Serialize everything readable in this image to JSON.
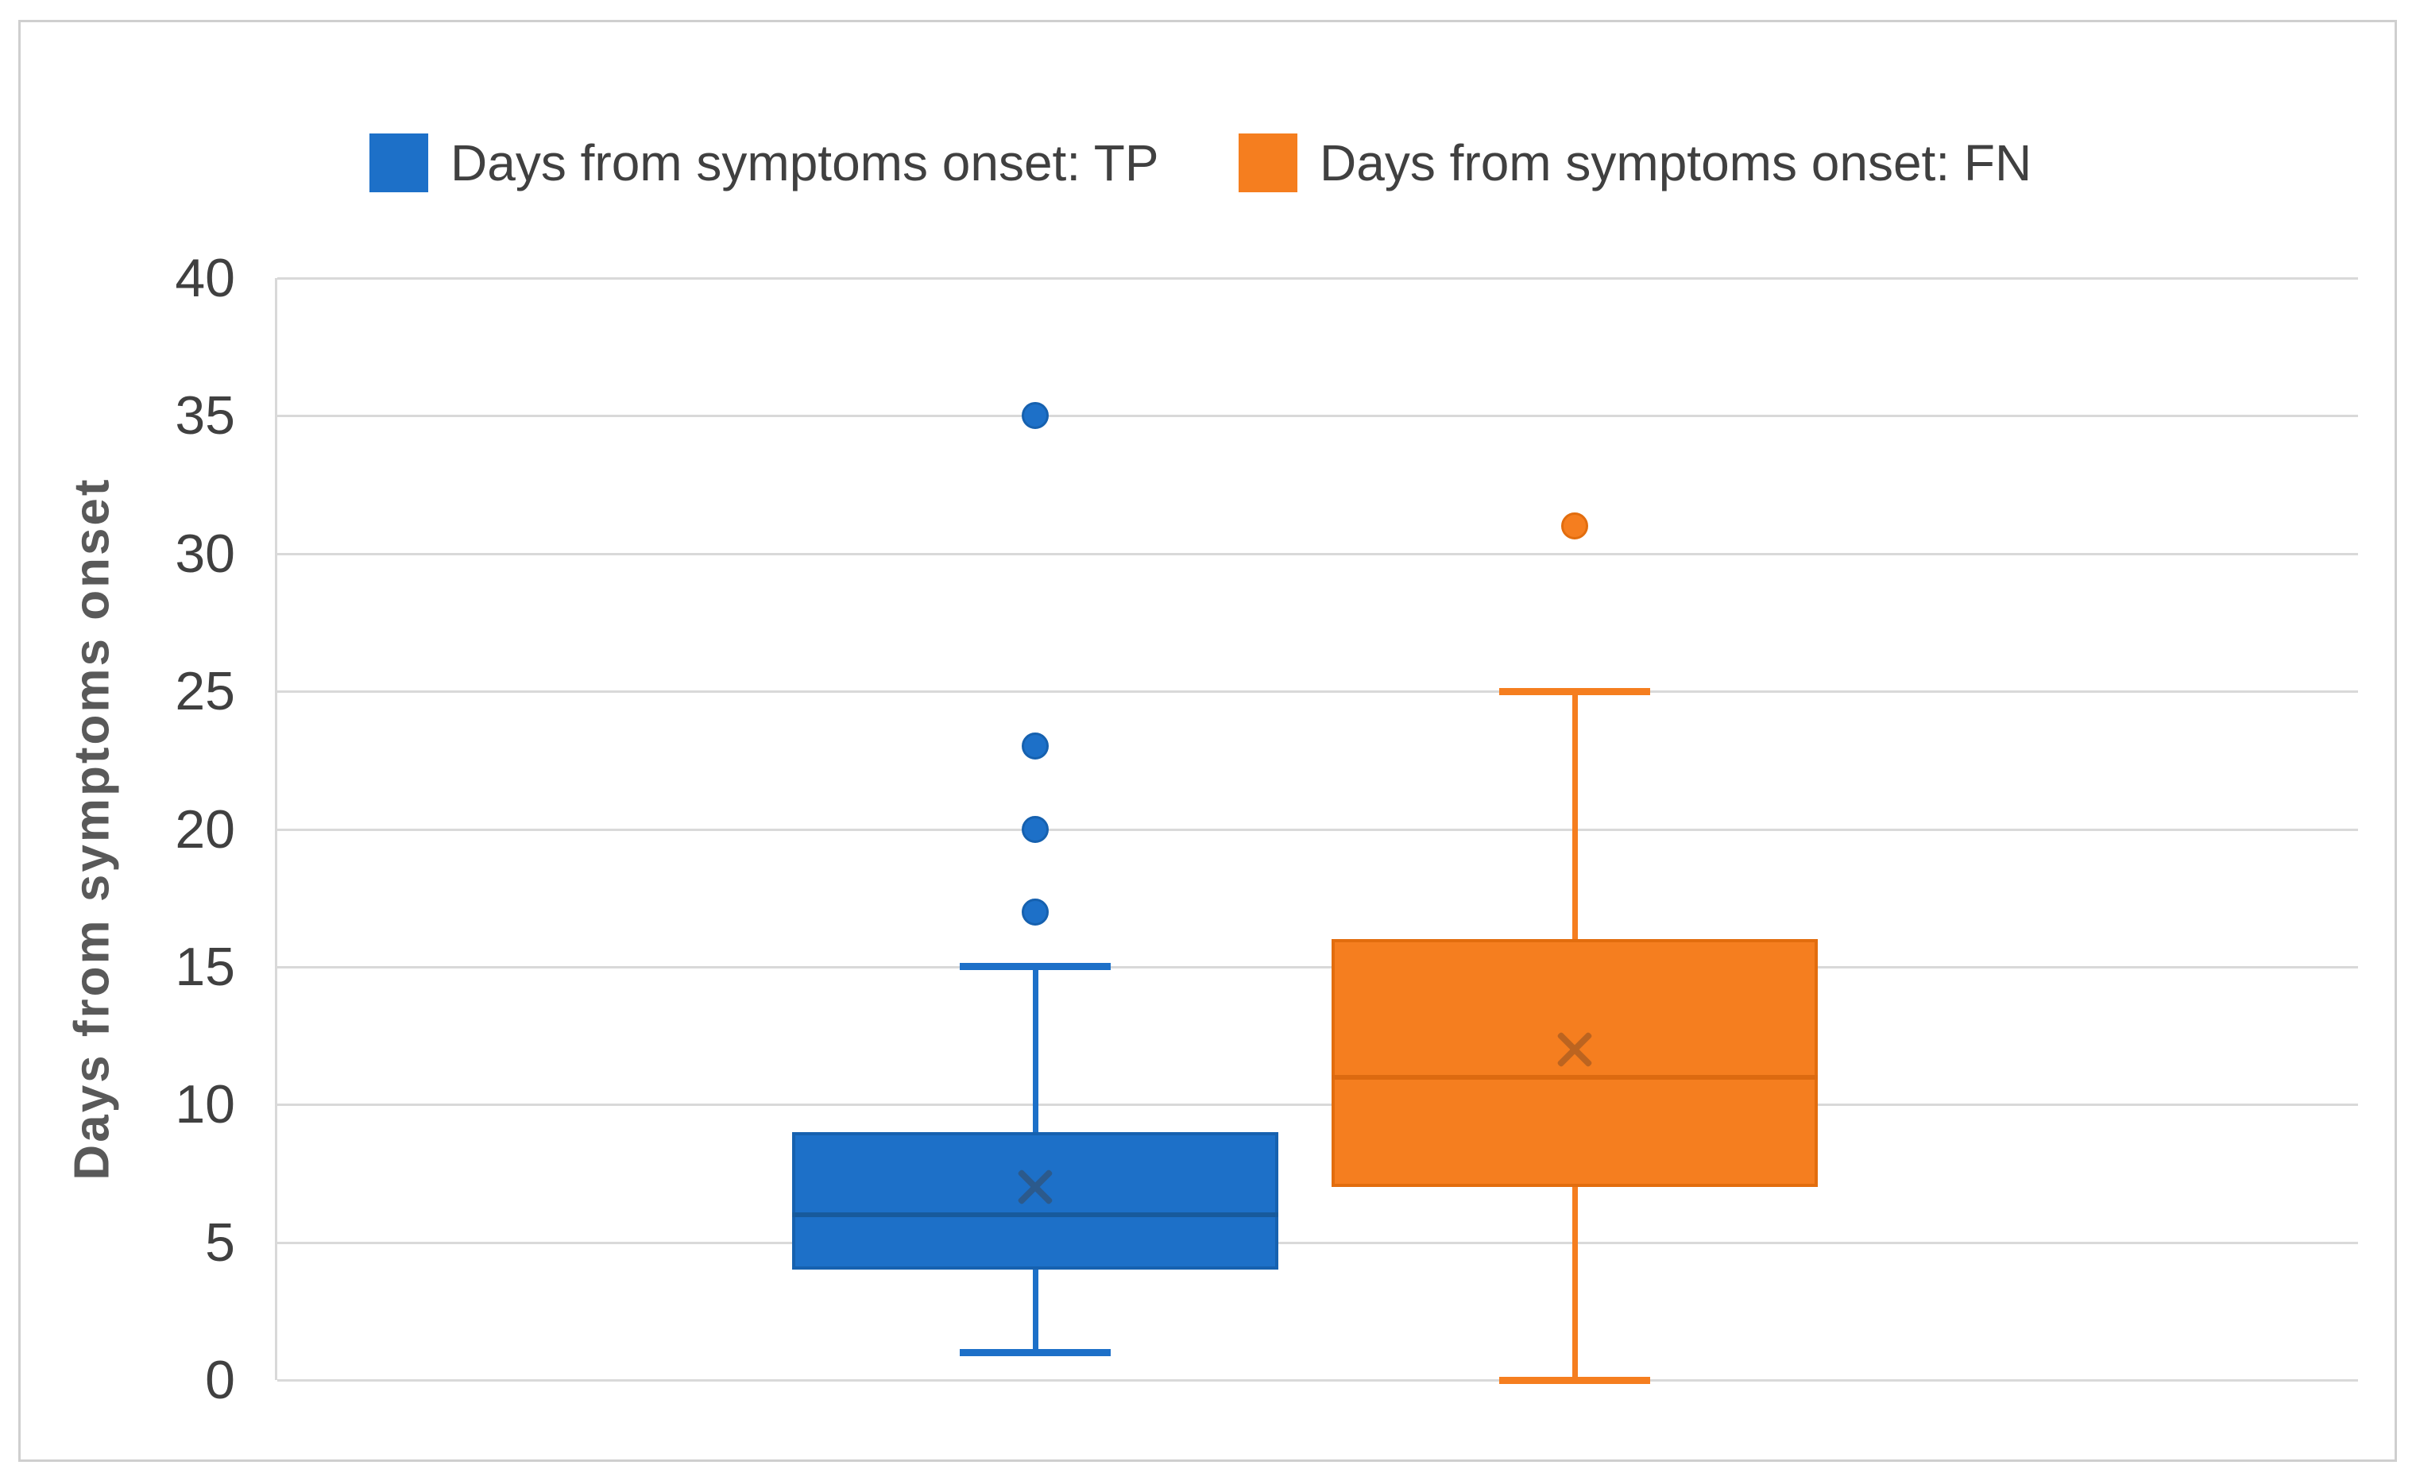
{
  "legend": {
    "items": [
      {
        "label": "Days from symptoms onset: TP",
        "color": "#1D70C8"
      },
      {
        "label": "Days from symptoms onset: FN",
        "color": "#F57E1F"
      }
    ]
  },
  "y_axis": {
    "title": "Days from symptoms onset",
    "tick_labels": [
      "0",
      "5",
      "10",
      "15",
      "20",
      "25",
      "30",
      "35",
      "40"
    ]
  },
  "chart_data": {
    "type": "boxplot",
    "title": "",
    "xlabel": "",
    "ylabel": "Days from symptoms onset",
    "ylim": [
      0,
      40
    ],
    "yticks": [
      0,
      5,
      10,
      15,
      20,
      25,
      30,
      35,
      40
    ],
    "grid": "horizontal",
    "legend_position": "top",
    "series": [
      {
        "name": "Days from symptoms onset: TP",
        "group": "TP",
        "min": 1,
        "q1": 4,
        "median": 6,
        "mean": 7,
        "q3": 9,
        "max": 15,
        "outliers": [
          17,
          20,
          23,
          35
        ],
        "fill": "#1D70C8",
        "stroke": "#1661AF",
        "median_color": "#175A9C",
        "mean_marker_color": "#2C5A8C"
      },
      {
        "name": "Days from symptoms onset: FN",
        "group": "FN",
        "min": 0,
        "q1": 7,
        "median": 11,
        "mean": 12,
        "q3": 16,
        "max": 25,
        "outliers": [
          31
        ],
        "fill": "#F57E1F",
        "stroke": "#E26D0E",
        "median_color": "#DC6A10",
        "mean_marker_color": "#BC6420"
      }
    ]
  },
  "colors": {
    "gridline": "#D9D9D9",
    "axis_text": "#404040",
    "axis_title_text": "#595959",
    "frame_border": "#CFCFCF"
  }
}
